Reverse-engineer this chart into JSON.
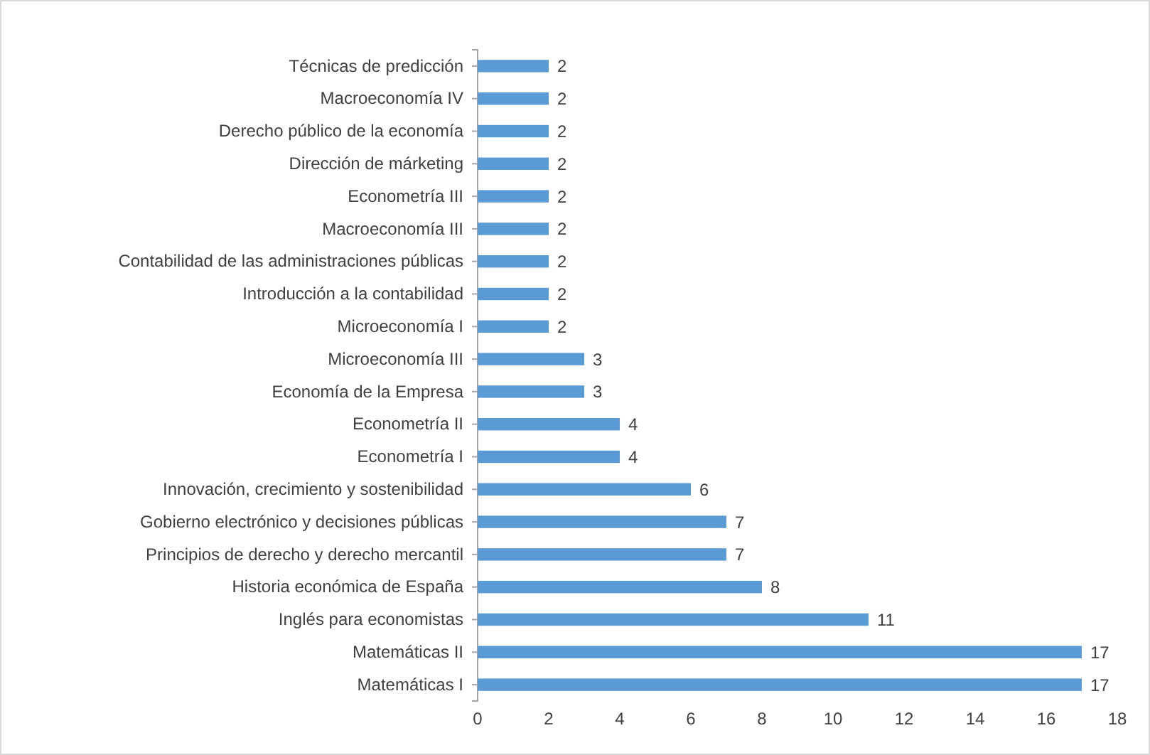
{
  "chart_data": {
    "type": "bar",
    "orientation": "horizontal",
    "categories": [
      "Técnicas de predicción",
      "Macroeconomía IV",
      "Derecho público de la economía",
      "Dirección de márketing",
      "Econometría III",
      "Macroeconomía III",
      "Contabilidad de las administraciones públicas",
      "Introducción a la contabilidad",
      "Microeconomía I",
      "Microeconomía III",
      "Economía de la Empresa",
      "Econometría II",
      "Econometría I",
      "Innovación, crecimiento y sostenibilidad",
      "Gobierno electrónico y decisiones públicas",
      "Principios de derecho y derecho mercantil",
      "Historia económica de España",
      "Inglés para economistas",
      "Matemáticas II",
      "Matemáticas I"
    ],
    "values": [
      2,
      2,
      2,
      2,
      2,
      2,
      2,
      2,
      2,
      3,
      3,
      4,
      4,
      6,
      7,
      7,
      8,
      11,
      17,
      17
    ],
    "color": "#5b9bd5",
    "xlim": [
      0,
      18
    ],
    "xticks": [
      0,
      2,
      4,
      6,
      8,
      10,
      12,
      14,
      16,
      18
    ],
    "data_labels": true
  }
}
